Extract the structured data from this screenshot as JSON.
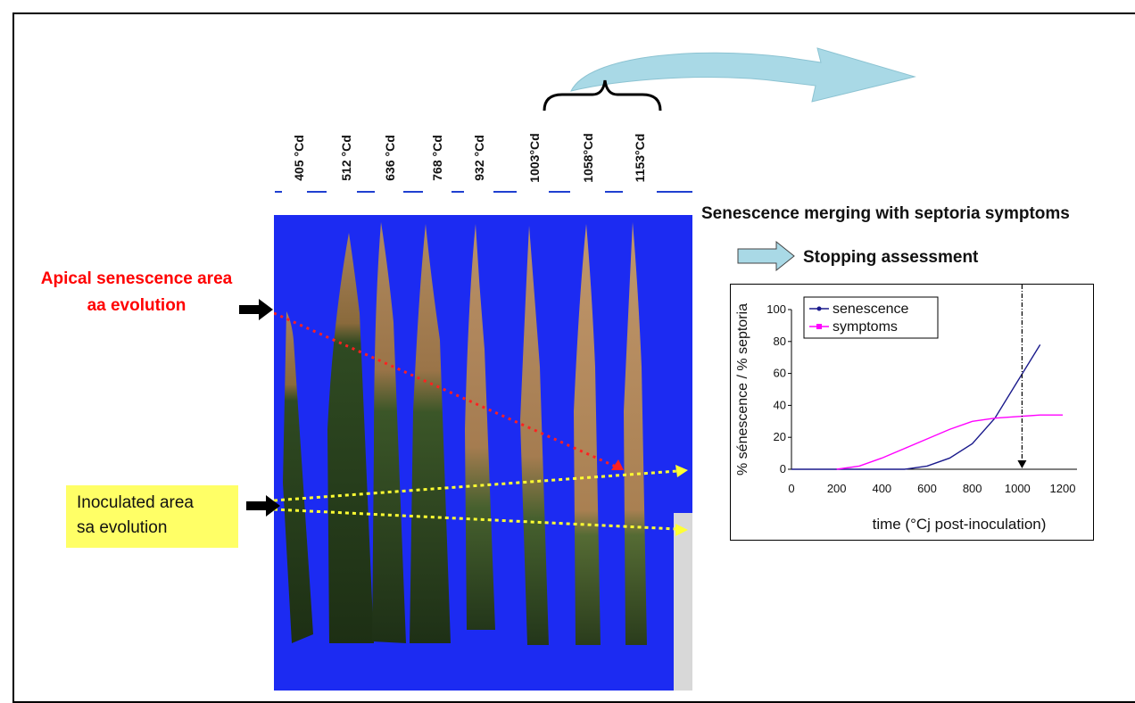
{
  "leaf_labels": [
    "405 °Cd",
    "512 °Cd",
    "636 °Cd",
    "768 °Cd",
    "932 °Cd",
    "1003°Cd",
    "1058°Cd",
    "1153°Cd"
  ],
  "annotations": {
    "apical": [
      "Apical senescence area",
      "aa evolution"
    ],
    "inoculated": [
      "Inoculated area",
      "sa evolution"
    ],
    "merging_heading": "Senescence merging with septoria symptoms",
    "stopping": "Stopping assessment"
  },
  "colors": {
    "apical_text": "#ff0000",
    "inoculated_bg": "#ffff66",
    "photo_bg": "#1c2bf2",
    "curved_arrow": "#a9d9e6",
    "senescence_line": "#1a1a8c",
    "symptoms_line": "#ff00ff"
  },
  "icons": [
    "curved-arrow-icon",
    "block-arrow-icon",
    "black-arrow-icon"
  ],
  "chart_data": {
    "type": "line",
    "ylabel": "% sénescence / % septoria",
    "xlabel": "time (°Cj post-inoculation)",
    "xlim": [
      0,
      1200
    ],
    "ylim": [
      0,
      100
    ],
    "xticks": [
      "0",
      "200",
      "400",
      "600",
      "800",
      "1000",
      "1200"
    ],
    "yticks": [
      "0",
      "20",
      "40",
      "60",
      "80",
      "100"
    ],
    "legend_position": "top-left",
    "marker_line_x": 1020,
    "series": [
      {
        "name": "senescence",
        "color": "#1a1a8c",
        "x": [
          0,
          200,
          400,
          500,
          600,
          700,
          800,
          900,
          1000,
          1100
        ],
        "y": [
          0,
          0,
          0,
          0,
          2,
          7,
          16,
          32,
          55,
          78
        ]
      },
      {
        "name": "symptoms",
        "color": "#ff00ff",
        "x": [
          200,
          300,
          400,
          500,
          600,
          700,
          800,
          900,
          1000,
          1100,
          1200
        ],
        "y": [
          0,
          2,
          7,
          13,
          19,
          25,
          30,
          32,
          33,
          34,
          34
        ]
      }
    ]
  }
}
